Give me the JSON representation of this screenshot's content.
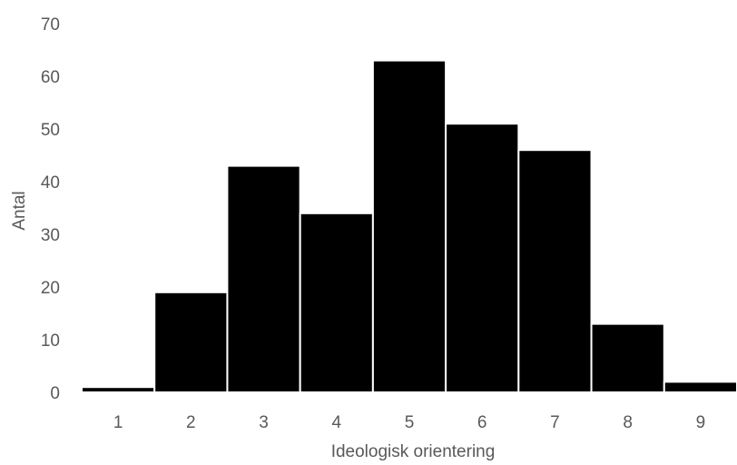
{
  "chart_data": {
    "type": "bar",
    "title": "",
    "xlabel": "Ideologisk orientering",
    "ylabel": "Antal",
    "categories": [
      "1",
      "2",
      "3",
      "4",
      "5",
      "6",
      "7",
      "8",
      "9"
    ],
    "values": [
      1,
      19,
      43,
      34,
      63,
      51,
      46,
      13,
      2
    ],
    "ylim": [
      0,
      70
    ],
    "yticks": [
      0,
      10,
      20,
      30,
      40,
      50,
      60,
      70
    ],
    "grid": false,
    "legend": "none",
    "colors": {
      "bar": "#000000",
      "bar_edge": "#ffffff",
      "text": "#595959"
    }
  }
}
